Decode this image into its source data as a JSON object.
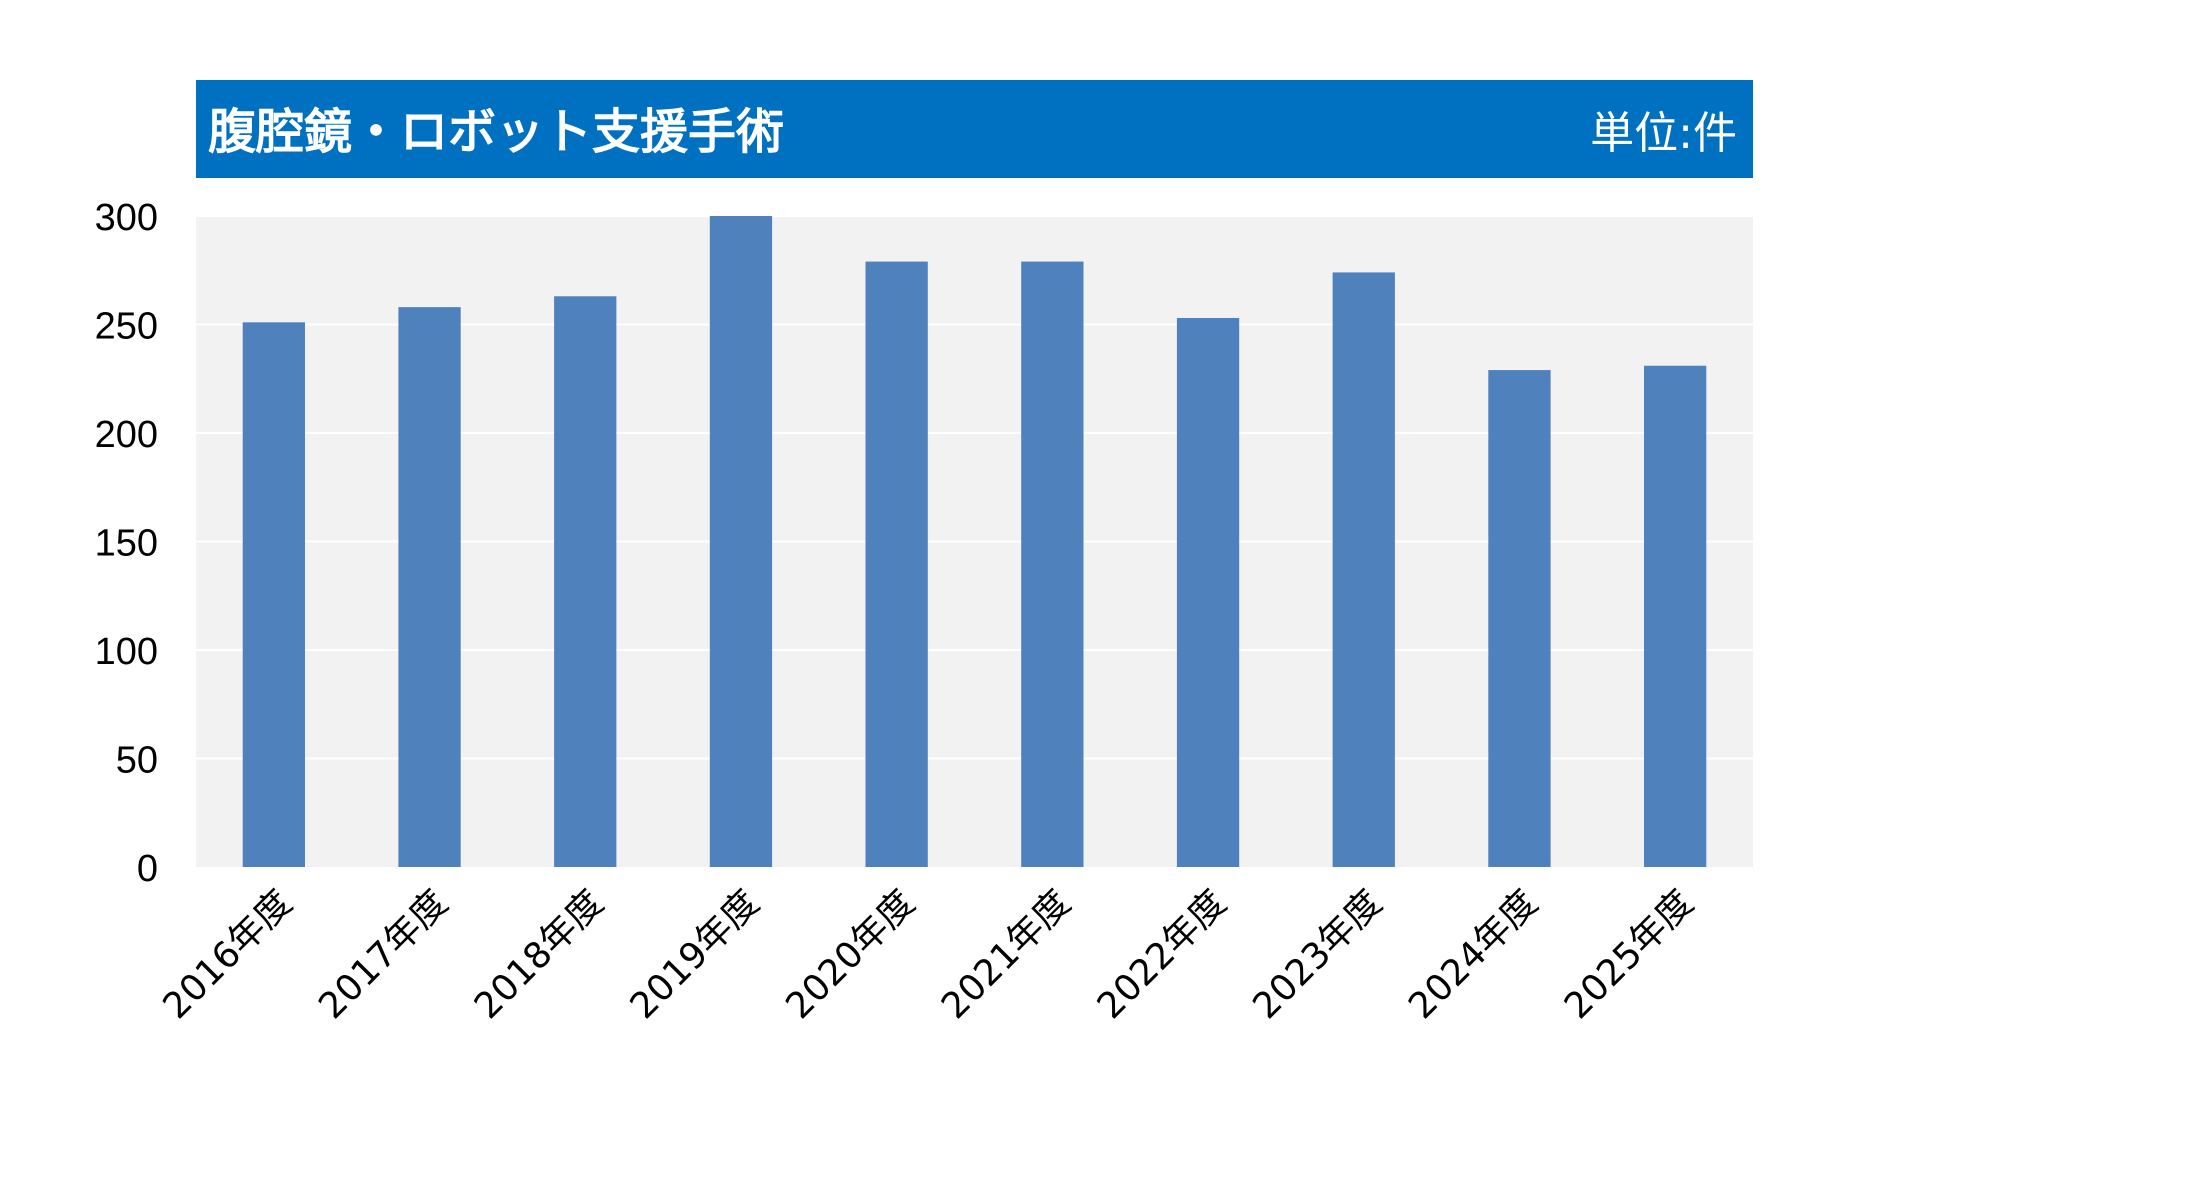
{
  "header": {
    "title": "腹腔鏡・ロボット支援手術",
    "unit": "単位:件"
  },
  "colors": {
    "header_bg": "#0070C0",
    "header_text": "#FFFFFF",
    "plot_bg": "#F2F2F2",
    "gridline": "#FFFFFF",
    "bar": "#4F81BD",
    "axis_text": "#000000"
  },
  "chart_data": {
    "type": "bar",
    "title": "腹腔鏡・ロボット支援手術",
    "unit_label": "単位:件",
    "categories": [
      "2016年度",
      "2017年度",
      "2018年度",
      "2019年度",
      "2020年度",
      "2021年度",
      "2022年度",
      "2023年度",
      "2024年度",
      "2025年度"
    ],
    "values": [
      251,
      258,
      263,
      300,
      279,
      279,
      253,
      274,
      229,
      231
    ],
    "ylim": [
      0,
      300
    ],
    "yticks": [
      0,
      50,
      100,
      150,
      200,
      250,
      300
    ],
    "grid": true,
    "legend": "none"
  }
}
